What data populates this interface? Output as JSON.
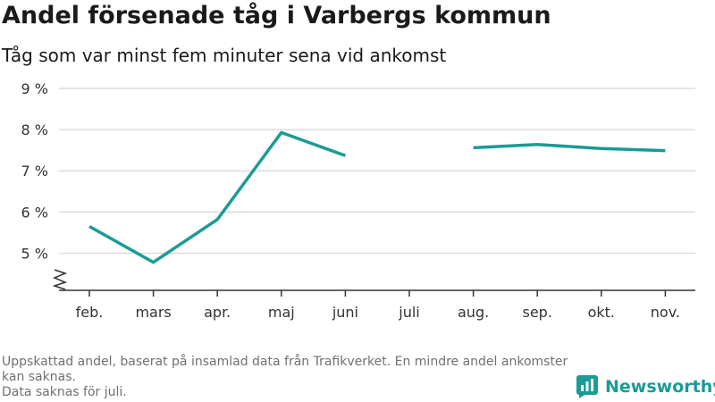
{
  "chart_data": {
    "type": "line",
    "title": "Andel försenade tåg i Varbergs kommun",
    "subtitle": "Tåg som var minst fem minuter sena vid ankomst",
    "categories": [
      "feb.",
      "mars",
      "apr.",
      "maj",
      "juni",
      "juli",
      "aug.",
      "sep.",
      "okt.",
      "nov."
    ],
    "series": [
      {
        "values": [
          5.65,
          4.78,
          5.82,
          7.93,
          7.37,
          null,
          7.56,
          7.64,
          7.54,
          7.49
        ],
        "color": "#1a9b95"
      }
    ],
    "y_ticks": [
      5,
      6,
      7,
      8,
      9
    ],
    "y_tick_labels": [
      "5 %",
      "6 %",
      "7 %",
      "8 %",
      "9 %"
    ],
    "ylim": [
      4.1,
      9.0
    ],
    "y_axis_break": true,
    "grid": true,
    "xlabel": "",
    "ylabel": ""
  },
  "footnote": {
    "line1": "Uppskattad andel, baserat på insamlad data från Trafikverket. En mindre andel ankomster kan saknas.",
    "line2": "Data saknas för juli."
  },
  "brand": {
    "name": "Newsworthy",
    "icon": "newsworthy-logo-icon",
    "color": "#1a9b95"
  }
}
